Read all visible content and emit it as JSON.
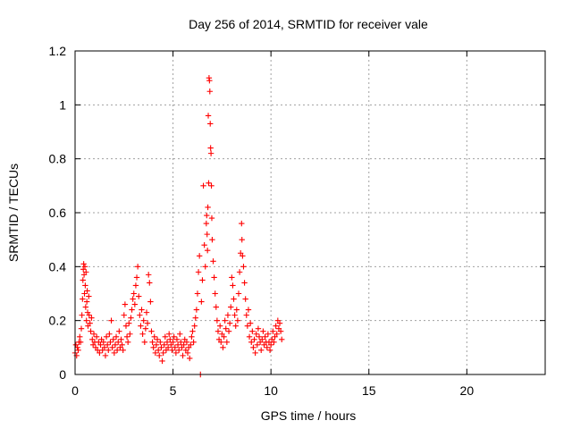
{
  "chart_data": {
    "type": "scatter",
    "title": "Day 256 of 2014, SRMTID for receiver vale",
    "xlabel": "GPS time / hours",
    "ylabel": "SRMTID / TECUs",
    "xlim": [
      0,
      24
    ],
    "ylim": [
      0,
      1.2
    ],
    "x_ticks": [
      0,
      5,
      10,
      15,
      20
    ],
    "x_tick_labels": [
      "0",
      "5",
      "10",
      "15",
      "20"
    ],
    "y_ticks": [
      0,
      0.2,
      0.4,
      0.6,
      0.8,
      1.0,
      1.2
    ],
    "y_tick_labels": [
      "0",
      "0.2",
      "0.4",
      "0.6",
      "0.8",
      "1",
      "1.2"
    ],
    "grid": true,
    "marker": "+",
    "series": [
      {
        "name": "vale",
        "color": "#ff0000",
        "points": [
          [
            0.0,
            0.08
          ],
          [
            0.04,
            0.11
          ],
          [
            0.08,
            0.07
          ],
          [
            0.12,
            0.1
          ],
          [
            0.16,
            0.09
          ],
          [
            0.2,
            0.12
          ],
          [
            0.24,
            0.14
          ],
          [
            0.28,
            0.12
          ],
          [
            0.32,
            0.17
          ],
          [
            0.35,
            0.22
          ],
          [
            0.38,
            0.28
          ],
          [
            0.4,
            0.35
          ],
          [
            0.42,
            0.39
          ],
          [
            0.44,
            0.41
          ],
          [
            0.46,
            0.37
          ],
          [
            0.48,
            0.3
          ],
          [
            0.5,
            0.4
          ],
          [
            0.52,
            0.33
          ],
          [
            0.54,
            0.25
          ],
          [
            0.56,
            0.38
          ],
          [
            0.58,
            0.2
          ],
          [
            0.6,
            0.27
          ],
          [
            0.62,
            0.31
          ],
          [
            0.64,
            0.23
          ],
          [
            0.66,
            0.18
          ],
          [
            0.7,
            0.29
          ],
          [
            0.72,
            0.22
          ],
          [
            0.76,
            0.19
          ],
          [
            0.8,
            0.16
          ],
          [
            0.84,
            0.21
          ],
          [
            0.88,
            0.13
          ],
          [
            0.92,
            0.11
          ],
          [
            0.96,
            0.15
          ],
          [
            1.0,
            0.12
          ],
          [
            1.05,
            0.1
          ],
          [
            1.1,
            0.14
          ],
          [
            1.15,
            0.09
          ],
          [
            1.2,
            0.12
          ],
          [
            1.25,
            0.08
          ],
          [
            1.3,
            0.11
          ],
          [
            1.35,
            0.13
          ],
          [
            1.4,
            0.09
          ],
          [
            1.45,
            0.12
          ],
          [
            1.5,
            0.1
          ],
          [
            1.55,
            0.07
          ],
          [
            1.6,
            0.14
          ],
          [
            1.65,
            0.11
          ],
          [
            1.7,
            0.09
          ],
          [
            1.75,
            0.15
          ],
          [
            1.8,
            0.12
          ],
          [
            1.85,
            0.2
          ],
          [
            1.9,
            0.1
          ],
          [
            1.95,
            0.13
          ],
          [
            2.0,
            0.08
          ],
          [
            2.05,
            0.11
          ],
          [
            2.1,
            0.14
          ],
          [
            2.15,
            0.09
          ],
          [
            2.2,
            0.12
          ],
          [
            2.25,
            0.16
          ],
          [
            2.3,
            0.1
          ],
          [
            2.35,
            0.13
          ],
          [
            2.4,
            0.11
          ],
          [
            2.45,
            0.09
          ],
          [
            2.5,
            0.22
          ],
          [
            2.55,
            0.26
          ],
          [
            2.6,
            0.18
          ],
          [
            2.65,
            0.14
          ],
          [
            2.7,
            0.12
          ],
          [
            2.75,
            0.19
          ],
          [
            2.8,
            0.15
          ],
          [
            2.85,
            0.21
          ],
          [
            2.9,
            0.24
          ],
          [
            2.95,
            0.28
          ],
          [
            3.0,
            0.3
          ],
          [
            3.05,
            0.26
          ],
          [
            3.1,
            0.33
          ],
          [
            3.15,
            0.36
          ],
          [
            3.2,
            0.4
          ],
          [
            3.25,
            0.29
          ],
          [
            3.3,
            0.22
          ],
          [
            3.35,
            0.18
          ],
          [
            3.4,
            0.24
          ],
          [
            3.45,
            0.15
          ],
          [
            3.5,
            0.2
          ],
          [
            3.55,
            0.12
          ],
          [
            3.6,
            0.17
          ],
          [
            3.65,
            0.23
          ],
          [
            3.7,
            0.19
          ],
          [
            3.75,
            0.37
          ],
          [
            3.8,
            0.34
          ],
          [
            3.85,
            0.27
          ],
          [
            3.9,
            0.16
          ],
          [
            3.95,
            0.12
          ],
          [
            4.0,
            0.1
          ],
          [
            4.05,
            0.14
          ],
          [
            4.1,
            0.08
          ],
          [
            4.15,
            0.11
          ],
          [
            4.2,
            0.13
          ],
          [
            4.25,
            0.09
          ],
          [
            4.3,
            0.07
          ],
          [
            4.35,
            0.12
          ],
          [
            4.4,
            0.1
          ],
          [
            4.45,
            0.05
          ],
          [
            4.5,
            0.08
          ],
          [
            4.55,
            0.11
          ],
          [
            4.6,
            0.14
          ],
          [
            4.65,
            0.09
          ],
          [
            4.7,
            0.12
          ],
          [
            4.75,
            0.1
          ],
          [
            4.8,
            0.15
          ],
          [
            4.85,
            0.13
          ],
          [
            4.9,
            0.11
          ],
          [
            4.95,
            0.09
          ],
          [
            5.0,
            0.12
          ],
          [
            5.05,
            0.14
          ],
          [
            5.1,
            0.1
          ],
          [
            5.15,
            0.08
          ],
          [
            5.2,
            0.13
          ],
          [
            5.25,
            0.11
          ],
          [
            5.3,
            0.09
          ],
          [
            5.35,
            0.15
          ],
          [
            5.4,
            0.12
          ],
          [
            5.45,
            0.1
          ],
          [
            5.5,
            0.07
          ],
          [
            5.55,
            0.11
          ],
          [
            5.6,
            0.13
          ],
          [
            5.65,
            0.09
          ],
          [
            5.7,
            0.12
          ],
          [
            5.75,
            0.08
          ],
          [
            5.8,
            0.1
          ],
          [
            5.85,
            0.06
          ],
          [
            5.9,
            0.11
          ],
          [
            5.95,
            0.14
          ],
          [
            6.0,
            0.16
          ],
          [
            6.05,
            0.12
          ],
          [
            6.1,
            0.18
          ],
          [
            6.15,
            0.21
          ],
          [
            6.2,
            0.24
          ],
          [
            6.25,
            0.3
          ],
          [
            6.3,
            0.38
          ],
          [
            6.35,
            0.44
          ],
          [
            6.4,
            0.0
          ],
          [
            6.45,
            0.27
          ],
          [
            6.5,
            0.35
          ],
          [
            6.55,
            0.7
          ],
          [
            6.6,
            0.48
          ],
          [
            6.65,
            0.4
          ],
          [
            6.7,
            0.56
          ],
          [
            6.72,
            0.59
          ],
          [
            6.74,
            0.52
          ],
          [
            6.76,
            0.46
          ],
          [
            6.78,
            0.62
          ],
          [
            6.8,
            0.96
          ],
          [
            6.82,
            0.71
          ],
          [
            6.84,
            1.1
          ],
          [
            6.86,
            1.09
          ],
          [
            6.88,
            1.05
          ],
          [
            6.9,
            0.93
          ],
          [
            6.92,
            0.84
          ],
          [
            6.94,
            0.82
          ],
          [
            6.96,
            0.7
          ],
          [
            6.98,
            0.58
          ],
          [
            7.0,
            0.5
          ],
          [
            7.05,
            0.42
          ],
          [
            7.1,
            0.36
          ],
          [
            7.15,
            0.3
          ],
          [
            7.2,
            0.25
          ],
          [
            7.25,
            0.2
          ],
          [
            7.3,
            0.16
          ],
          [
            7.35,
            0.13
          ],
          [
            7.4,
            0.18
          ],
          [
            7.45,
            0.12
          ],
          [
            7.5,
            0.15
          ],
          [
            7.55,
            0.1
          ],
          [
            7.6,
            0.14
          ],
          [
            7.65,
            0.2
          ],
          [
            7.7,
            0.17
          ],
          [
            7.75,
            0.12
          ],
          [
            7.8,
            0.22
          ],
          [
            7.85,
            0.16
          ],
          [
            7.9,
            0.19
          ],
          [
            7.95,
            0.25
          ],
          [
            8.0,
            0.36
          ],
          [
            8.05,
            0.33
          ],
          [
            8.1,
            0.28
          ],
          [
            8.15,
            0.22
          ],
          [
            8.2,
            0.18
          ],
          [
            8.25,
            0.24
          ],
          [
            8.3,
            0.2
          ],
          [
            8.35,
            0.3
          ],
          [
            8.4,
            0.38
          ],
          [
            8.45,
            0.45
          ],
          [
            8.5,
            0.56
          ],
          [
            8.52,
            0.5
          ],
          [
            8.55,
            0.44
          ],
          [
            8.6,
            0.4
          ],
          [
            8.65,
            0.34
          ],
          [
            8.7,
            0.28
          ],
          [
            8.75,
            0.22
          ],
          [
            8.8,
            0.18
          ],
          [
            8.85,
            0.24
          ],
          [
            8.9,
            0.14
          ],
          [
            8.95,
            0.19
          ],
          [
            9.0,
            0.12
          ],
          [
            9.05,
            0.16
          ],
          [
            9.1,
            0.1
          ],
          [
            9.15,
            0.13
          ],
          [
            9.2,
            0.08
          ],
          [
            9.25,
            0.15
          ],
          [
            9.3,
            0.11
          ],
          [
            9.35,
            0.17
          ],
          [
            9.4,
            0.14
          ],
          [
            9.45,
            0.12
          ],
          [
            9.5,
            0.09
          ],
          [
            9.55,
            0.13
          ],
          [
            9.6,
            0.16
          ],
          [
            9.65,
            0.11
          ],
          [
            9.7,
            0.14
          ],
          [
            9.75,
            0.12
          ],
          [
            9.8,
            0.1
          ],
          [
            9.85,
            0.15
          ],
          [
            9.9,
            0.12
          ],
          [
            9.95,
            0.09
          ],
          [
            10.0,
            0.11
          ],
          [
            10.05,
            0.13
          ],
          [
            10.1,
            0.16
          ],
          [
            10.15,
            0.12
          ],
          [
            10.2,
            0.14
          ],
          [
            10.25,
            0.18
          ],
          [
            10.3,
            0.15
          ],
          [
            10.35,
            0.2
          ],
          [
            10.4,
            0.17
          ],
          [
            10.45,
            0.19
          ],
          [
            10.5,
            0.16
          ],
          [
            10.55,
            0.13
          ]
        ]
      }
    ]
  }
}
